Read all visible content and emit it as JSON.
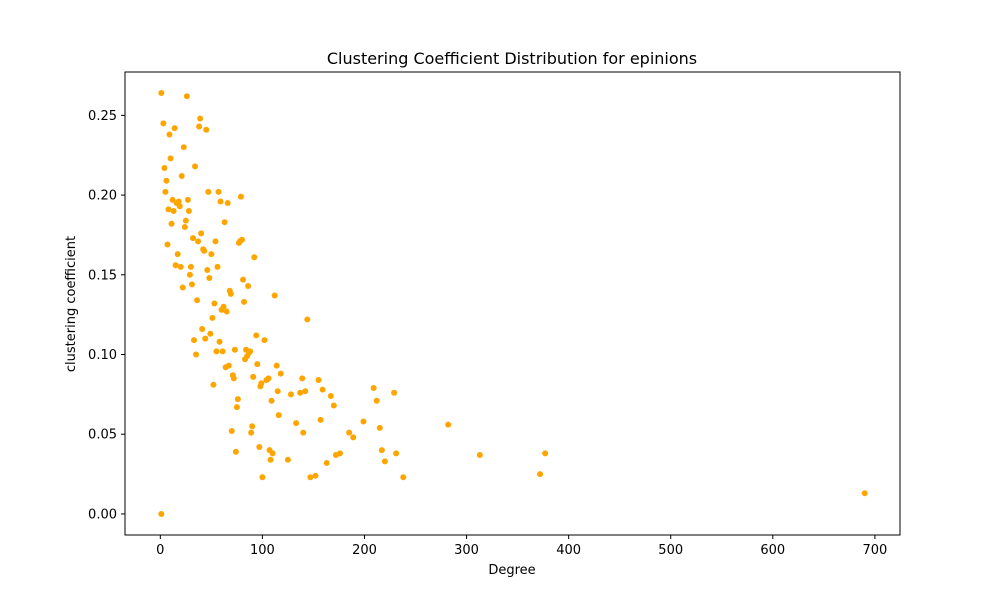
{
  "chart_data": {
    "type": "scatter",
    "title": "Clustering Coefficient Distribution for epinions",
    "xlabel": "Degree",
    "ylabel": "clustering coefficient",
    "xlim": [
      -34.6,
      724.6
    ],
    "ylim": [
      -0.0132,
      0.2772
    ],
    "xticks": [
      0,
      100,
      200,
      300,
      400,
      500,
      600,
      700
    ],
    "yticks": [
      0.0,
      0.05,
      0.1,
      0.15,
      0.2,
      0.25
    ],
    "ytick_labels": [
      "0.00",
      "0.05",
      "0.10",
      "0.15",
      "0.20",
      "0.25"
    ],
    "grid": false,
    "marker_color": "#ffa500",
    "points": [
      [
        1,
        0.264
      ],
      [
        1,
        0.0
      ],
      [
        3,
        0.245
      ],
      [
        4,
        0.217
      ],
      [
        5,
        0.202
      ],
      [
        6,
        0.209
      ],
      [
        7,
        0.169
      ],
      [
        8,
        0.191
      ],
      [
        9,
        0.238
      ],
      [
        10,
        0.223
      ],
      [
        11,
        0.182
      ],
      [
        12,
        0.197
      ],
      [
        13,
        0.19
      ],
      [
        14,
        0.242
      ],
      [
        15,
        0.156
      ],
      [
        16,
        0.195
      ],
      [
        17,
        0.163
      ],
      [
        18,
        0.196
      ],
      [
        19,
        0.193
      ],
      [
        20,
        0.155
      ],
      [
        21,
        0.212
      ],
      [
        22,
        0.142
      ],
      [
        23,
        0.23
      ],
      [
        24,
        0.18
      ],
      [
        25,
        0.184
      ],
      [
        26,
        0.262
      ],
      [
        27,
        0.197
      ],
      [
        28,
        0.19
      ],
      [
        29,
        0.15
      ],
      [
        30,
        0.155
      ],
      [
        31,
        0.144
      ],
      [
        32,
        0.173
      ],
      [
        33,
        0.109
      ],
      [
        34,
        0.218
      ],
      [
        35,
        0.1
      ],
      [
        36,
        0.134
      ],
      [
        37,
        0.171
      ],
      [
        38,
        0.243
      ],
      [
        39,
        0.248
      ],
      [
        40,
        0.176
      ],
      [
        41,
        0.116
      ],
      [
        42,
        0.166
      ],
      [
        43,
        0.165
      ],
      [
        44,
        0.11
      ],
      [
        45,
        0.241
      ],
      [
        46,
        0.153
      ],
      [
        47,
        0.202
      ],
      [
        48,
        0.148
      ],
      [
        49,
        0.113
      ],
      [
        50,
        0.163
      ],
      [
        51,
        0.123
      ],
      [
        52,
        0.081
      ],
      [
        53,
        0.132
      ],
      [
        54,
        0.171
      ],
      [
        55,
        0.102
      ],
      [
        56,
        0.155
      ],
      [
        57,
        0.202
      ],
      [
        58,
        0.108
      ],
      [
        59,
        0.196
      ],
      [
        60,
        0.128
      ],
      [
        61,
        0.102
      ],
      [
        62,
        0.13
      ],
      [
        63,
        0.183
      ],
      [
        64,
        0.092
      ],
      [
        65,
        0.127
      ],
      [
        66,
        0.195
      ],
      [
        67,
        0.093
      ],
      [
        68,
        0.14
      ],
      [
        69,
        0.138
      ],
      [
        70,
        0.052
      ],
      [
        71,
        0.087
      ],
      [
        72,
        0.085
      ],
      [
        73,
        0.103
      ],
      [
        74,
        0.039
      ],
      [
        75,
        0.067
      ],
      [
        76,
        0.072
      ],
      [
        77,
        0.17
      ],
      [
        78,
        0.171
      ],
      [
        79,
        0.199
      ],
      [
        80,
        0.172
      ],
      [
        81,
        0.147
      ],
      [
        82,
        0.133
      ],
      [
        83,
        0.097
      ],
      [
        84,
        0.103
      ],
      [
        85,
        0.099
      ],
      [
        86,
        0.143
      ],
      [
        87,
        0.101
      ],
      [
        88,
        0.102
      ],
      [
        89,
        0.051
      ],
      [
        90,
        0.055
      ],
      [
        91,
        0.086
      ],
      [
        92,
        0.161
      ],
      [
        94,
        0.112
      ],
      [
        95,
        0.094
      ],
      [
        97,
        0.042
      ],
      [
        98,
        0.08
      ],
      [
        99,
        0.082
      ],
      [
        100,
        0.023
      ],
      [
        102,
        0.109
      ],
      [
        104,
        0.084
      ],
      [
        106,
        0.085
      ],
      [
        107,
        0.04
      ],
      [
        108,
        0.034
      ],
      [
        109,
        0.071
      ],
      [
        110,
        0.038
      ],
      [
        112,
        0.137
      ],
      [
        114,
        0.093
      ],
      [
        115,
        0.077
      ],
      [
        116,
        0.062
      ],
      [
        118,
        0.088
      ],
      [
        125,
        0.034
      ],
      [
        128,
        0.075
      ],
      [
        133,
        0.057
      ],
      [
        137,
        0.076
      ],
      [
        139,
        0.085
      ],
      [
        140,
        0.051
      ],
      [
        142,
        0.077
      ],
      [
        144,
        0.122
      ],
      [
        147,
        0.023
      ],
      [
        152,
        0.024
      ],
      [
        155,
        0.084
      ],
      [
        157,
        0.059
      ],
      [
        159,
        0.078
      ],
      [
        163,
        0.032
      ],
      [
        167,
        0.074
      ],
      [
        170,
        0.068
      ],
      [
        172,
        0.037
      ],
      [
        176,
        0.038
      ],
      [
        185,
        0.051
      ],
      [
        189,
        0.048
      ],
      [
        199,
        0.058
      ],
      [
        209,
        0.079
      ],
      [
        212,
        0.071
      ],
      [
        215,
        0.054
      ],
      [
        217,
        0.04
      ],
      [
        220,
        0.033
      ],
      [
        229,
        0.076
      ],
      [
        231,
        0.038
      ],
      [
        238,
        0.023
      ],
      [
        282,
        0.056
      ],
      [
        313,
        0.037
      ],
      [
        372,
        0.025
      ],
      [
        377,
        0.038
      ],
      [
        690,
        0.013
      ]
    ]
  }
}
